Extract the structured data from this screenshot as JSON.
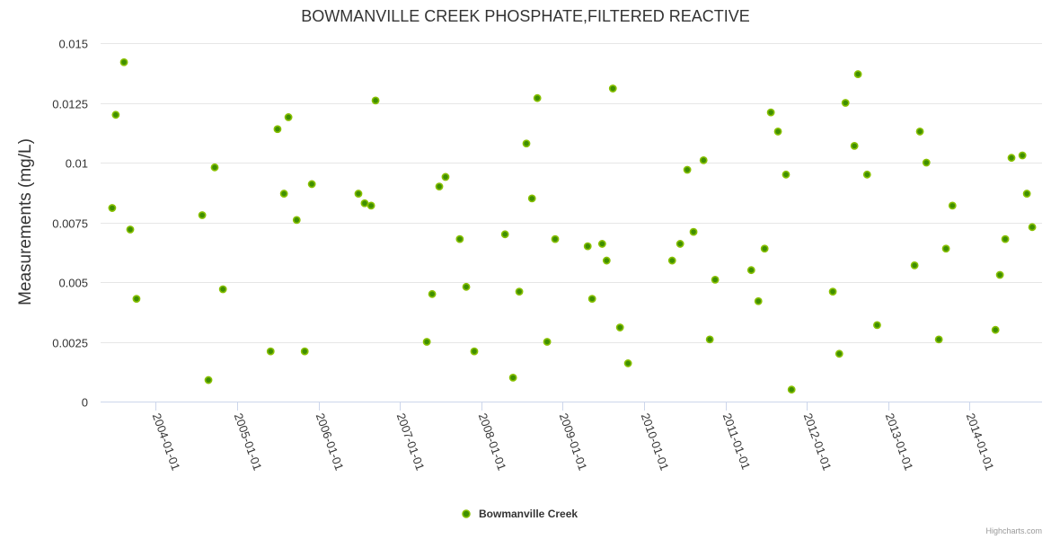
{
  "chart_data": {
    "type": "scatter",
    "title": "BOWMANVILLE CREEK PHOSPHATE,FILTERED REACTIVE",
    "xlabel": "",
    "ylabel": "Measurements (mg/L)",
    "ylim": [
      0,
      0.015
    ],
    "xlim": [
      "2003-04-29",
      "2014-11-22"
    ],
    "yticks": [
      "0",
      "0.0025",
      "0.005",
      "0.0075",
      "0.01",
      "0.0125",
      "0.015"
    ],
    "ytick_values": [
      0,
      0.0025,
      0.005,
      0.0075,
      0.01,
      0.0125,
      0.015
    ],
    "xticks": [
      "2004-01-01",
      "2005-01-01",
      "2006-01-01",
      "2007-01-01",
      "2008-01-01",
      "2009-01-01",
      "2010-01-01",
      "2011-01-01",
      "2012-01-01",
      "2013-01-01",
      "2014-01-01"
    ],
    "grid": true,
    "legend_position": "bottom-center",
    "series": [
      {
        "name": "Bowmanville Creek",
        "color": "#66aa00",
        "points": [
          [
            "2003-06-20",
            0.0081
          ],
          [
            "2003-07-06",
            0.012
          ],
          [
            "2003-08-12",
            0.0142
          ],
          [
            "2003-09-09",
            0.0072
          ],
          [
            "2003-10-07",
            0.0043
          ],
          [
            "2004-07-28",
            0.0078
          ],
          [
            "2004-08-25",
            0.0009
          ],
          [
            "2004-09-22",
            0.0098
          ],
          [
            "2004-10-29",
            0.0047
          ],
          [
            "2005-05-31",
            0.0021
          ],
          [
            "2005-07-01",
            0.0114
          ],
          [
            "2005-07-30",
            0.0087
          ],
          [
            "2005-08-19",
            0.0119
          ],
          [
            "2005-09-25",
            0.0076
          ],
          [
            "2005-10-31",
            0.0021
          ],
          [
            "2005-12-02",
            0.0091
          ],
          [
            "2006-06-29",
            0.0087
          ],
          [
            "2006-07-27",
            0.0083
          ],
          [
            "2006-08-25",
            0.0082
          ],
          [
            "2006-09-14",
            0.0126
          ],
          [
            "2007-05-02",
            0.0025
          ],
          [
            "2007-05-26",
            0.0045
          ],
          [
            "2007-06-27",
            0.009
          ],
          [
            "2007-07-25",
            0.0094
          ],
          [
            "2007-09-27",
            0.0068
          ],
          [
            "2007-10-26",
            0.0048
          ],
          [
            "2007-12-01",
            0.0021
          ],
          [
            "2008-04-17",
            0.007
          ],
          [
            "2008-05-23",
            0.001
          ],
          [
            "2008-06-20",
            0.0046
          ],
          [
            "2008-07-22",
            0.0108
          ],
          [
            "2008-08-16",
            0.0085
          ],
          [
            "2008-09-09",
            0.0127
          ],
          [
            "2008-10-23",
            0.0025
          ],
          [
            "2008-11-28",
            0.0068
          ],
          [
            "2009-04-23",
            0.0065
          ],
          [
            "2009-05-13",
            0.0043
          ],
          [
            "2009-06-27",
            0.0066
          ],
          [
            "2009-07-17",
            0.0059
          ],
          [
            "2009-08-14",
            0.0131
          ],
          [
            "2009-09-15",
            0.0031
          ],
          [
            "2009-10-21",
            0.0016
          ],
          [
            "2010-05-07",
            0.0059
          ],
          [
            "2010-06-12",
            0.0066
          ],
          [
            "2010-07-14",
            0.0097
          ],
          [
            "2010-08-11",
            0.0071
          ],
          [
            "2010-09-25",
            0.0101
          ],
          [
            "2010-10-23",
            0.0026
          ],
          [
            "2010-11-16",
            0.0051
          ],
          [
            "2011-04-27",
            0.0055
          ],
          [
            "2011-05-29",
            0.0042
          ],
          [
            "2011-06-26",
            0.0064
          ],
          [
            "2011-07-24",
            0.0121
          ],
          [
            "2011-08-25",
            0.0113
          ],
          [
            "2011-09-30",
            0.0095
          ],
          [
            "2011-10-25",
            0.0005
          ],
          [
            "2012-04-27",
            0.0046
          ],
          [
            "2012-05-26",
            0.002
          ],
          [
            "2012-06-23",
            0.0125
          ],
          [
            "2012-08-02",
            0.0107
          ],
          [
            "2012-08-18",
            0.0137
          ],
          [
            "2012-09-28",
            0.0095
          ],
          [
            "2012-11-12",
            0.0032
          ],
          [
            "2013-04-29",
            0.0057
          ],
          [
            "2013-05-23",
            0.0113
          ],
          [
            "2013-06-21",
            0.01
          ],
          [
            "2013-08-16",
            0.0026
          ],
          [
            "2013-09-17",
            0.0064
          ],
          [
            "2013-10-16",
            0.0082
          ],
          [
            "2014-04-27",
            0.003
          ],
          [
            "2014-05-17",
            0.0053
          ],
          [
            "2014-06-10",
            0.0068
          ],
          [
            "2014-07-08",
            0.0102
          ],
          [
            "2014-08-26",
            0.0103
          ],
          [
            "2014-09-15",
            0.0087
          ],
          [
            "2014-10-09",
            0.0073
          ]
        ]
      }
    ],
    "credits": "Highcharts.com"
  }
}
